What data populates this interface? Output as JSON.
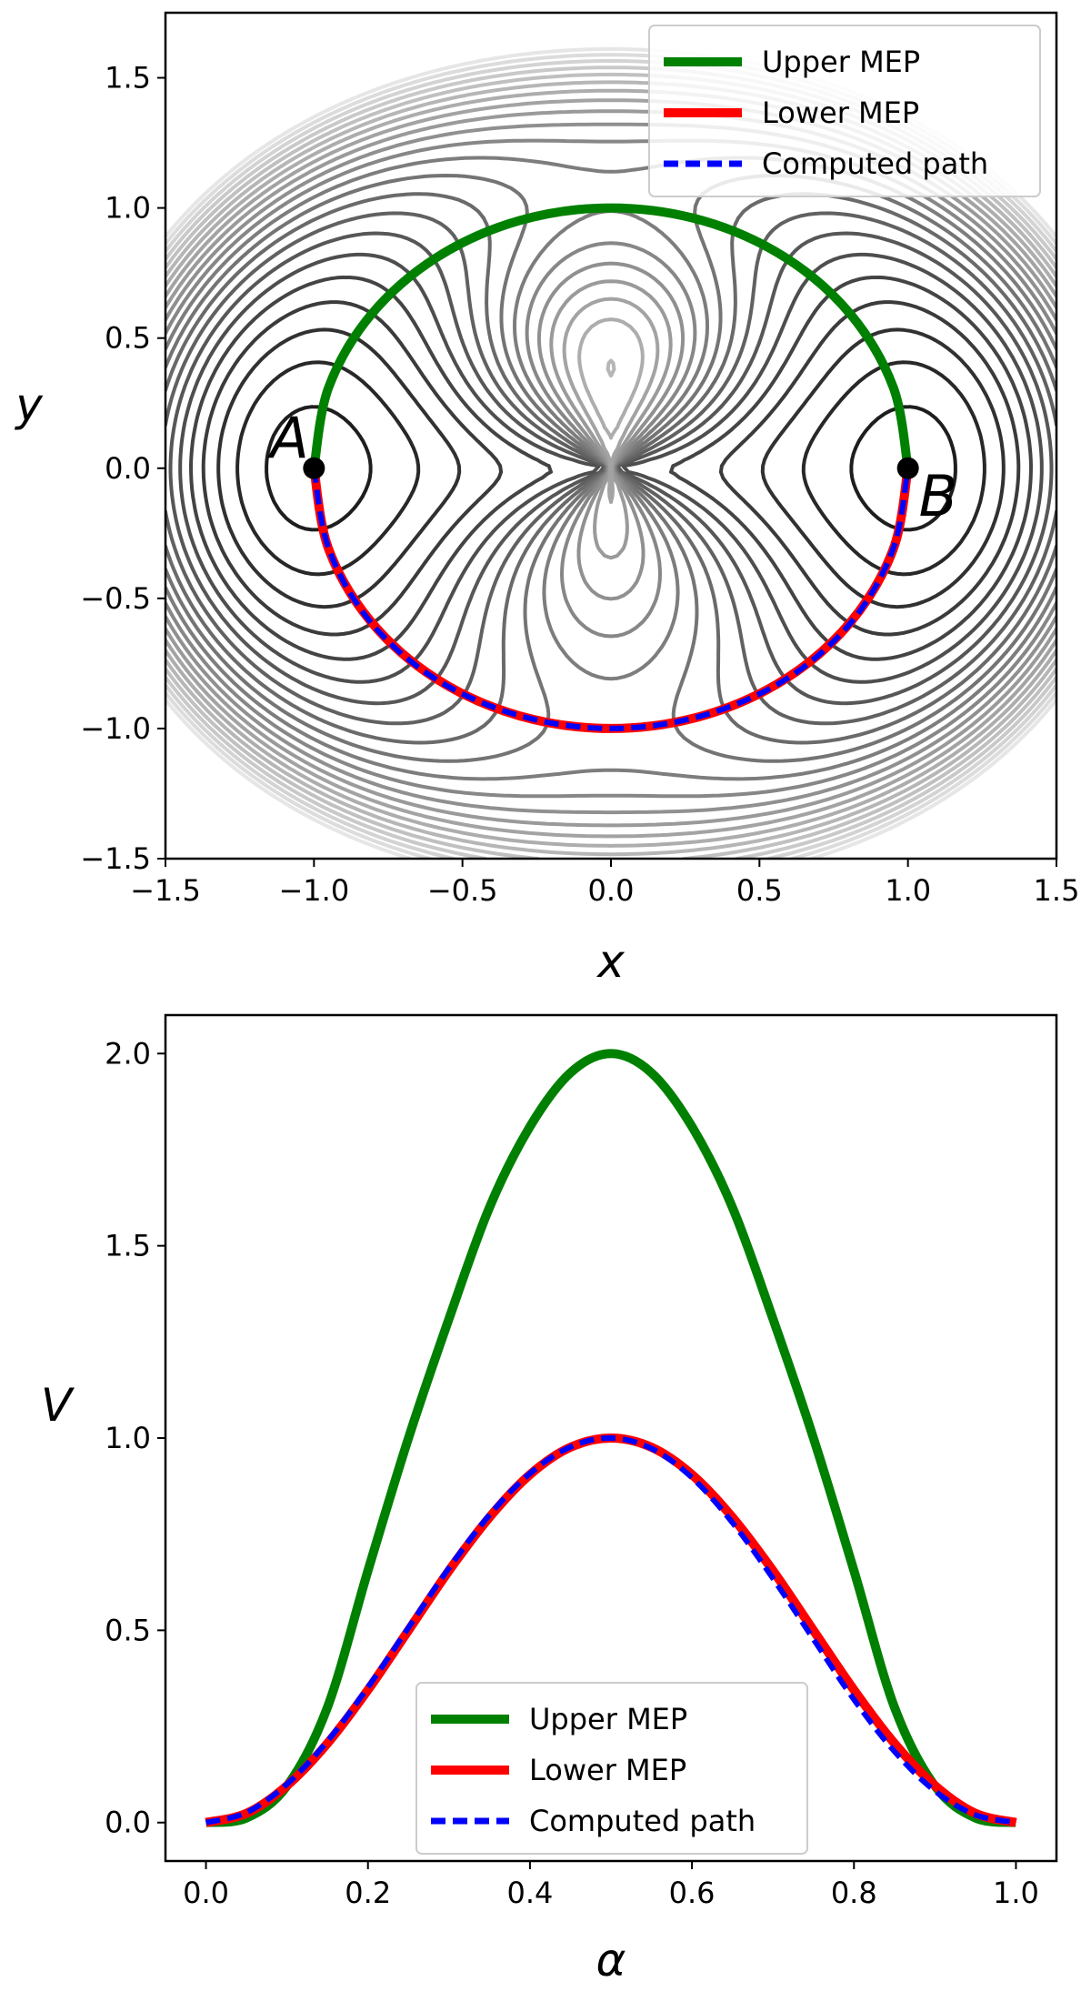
{
  "chart_data": [
    {
      "type": "line",
      "xlabel": "x",
      "ylabel": "y",
      "xlim": [
        -1.5,
        1.5
      ],
      "ylim": [
        -1.5,
        1.75
      ],
      "xticks": [
        -1.5,
        -1.0,
        -0.5,
        0.0,
        0.5,
        1.0,
        1.5
      ],
      "xtick_labels": [
        "−1.5",
        "−1.0",
        "−0.5",
        "0.0",
        "0.5",
        "1.0",
        "1.5"
      ],
      "yticks": [
        -1.5,
        -1.0,
        -0.5,
        0.0,
        0.5,
        1.0,
        1.5
      ],
      "ytick_labels": [
        "−1.5",
        "−1.0",
        "−0.5",
        "0.0",
        "0.5",
        "1.0",
        "1.5"
      ],
      "background": "grayscale contour lines of a potential energy surface with minima near A and B",
      "points": [
        {
          "label": "A",
          "x": -1.0,
          "y": 0.0
        },
        {
          "label": "B",
          "x": 1.0,
          "y": 0.0
        }
      ],
      "series": [
        {
          "name": "Upper MEP",
          "color": "#008000",
          "style": "solid",
          "x": [
            -1.0,
            -0.951,
            -0.809,
            -0.588,
            -0.309,
            0.0,
            0.309,
            0.588,
            0.809,
            0.951,
            1.0
          ],
          "y": [
            0.0,
            0.309,
            0.588,
            0.809,
            0.951,
            1.0,
            0.951,
            0.809,
            0.588,
            0.309,
            0.0
          ]
        },
        {
          "name": "Lower MEP",
          "color": "#ff0000",
          "style": "solid",
          "x": [
            -1.0,
            -0.951,
            -0.809,
            -0.588,
            -0.309,
            0.0,
            0.309,
            0.588,
            0.809,
            0.951,
            1.0
          ],
          "y": [
            0.0,
            -0.309,
            -0.588,
            -0.809,
            -0.951,
            -1.0,
            -0.951,
            -0.809,
            -0.588,
            -0.309,
            0.0
          ]
        },
        {
          "name": "Computed path",
          "color": "#0000ff",
          "style": "dashed",
          "x": [
            -1.0,
            -0.95,
            -0.81,
            -0.59,
            -0.31,
            0.0,
            0.31,
            0.59,
            0.81,
            0.95,
            1.0
          ],
          "y": [
            0.0,
            -0.31,
            -0.59,
            -0.81,
            -0.95,
            -1.0,
            -0.95,
            -0.81,
            -0.59,
            -0.31,
            0.0
          ]
        }
      ],
      "legend": {
        "position": "top-right",
        "entries": [
          "Upper MEP",
          "Lower MEP",
          "Computed path"
        ]
      }
    },
    {
      "type": "line",
      "xlabel": "α",
      "ylabel": "V",
      "xlim": [
        -0.05,
        1.05
      ],
      "ylim": [
        -0.1,
        2.1
      ],
      "xticks": [
        0.0,
        0.2,
        0.4,
        0.6,
        0.8,
        1.0
      ],
      "xtick_labels": [
        "0.0",
        "0.2",
        "0.4",
        "0.6",
        "0.8",
        "1.0"
      ],
      "yticks": [
        0.0,
        0.5,
        1.0,
        1.5,
        2.0
      ],
      "ytick_labels": [
        "0.0",
        "0.5",
        "1.0",
        "1.5",
        "2.0"
      ],
      "series": [
        {
          "name": "Upper MEP",
          "color": "#008000",
          "style": "solid",
          "x": [
            0.0,
            0.05,
            0.1,
            0.15,
            0.2,
            0.25,
            0.3,
            0.35,
            0.4,
            0.45,
            0.5,
            0.55,
            0.6,
            0.65,
            0.7,
            0.75,
            0.8,
            0.85,
            0.9,
            0.95,
            1.0
          ],
          "y": [
            0.0,
            0.012,
            0.095,
            0.3,
            0.655,
            1.0,
            1.31,
            1.6,
            1.81,
            1.95,
            2.0,
            1.95,
            1.81,
            1.6,
            1.31,
            1.0,
            0.655,
            0.3,
            0.095,
            0.012,
            0.0
          ]
        },
        {
          "name": "Lower MEP",
          "color": "#ff0000",
          "style": "solid",
          "x": [
            0.0,
            0.05,
            0.1,
            0.15,
            0.2,
            0.25,
            0.3,
            0.35,
            0.4,
            0.45,
            0.5,
            0.55,
            0.6,
            0.65,
            0.7,
            0.75,
            0.8,
            0.85,
            0.9,
            0.95,
            1.0
          ],
          "y": [
            0.0,
            0.024,
            0.096,
            0.206,
            0.345,
            0.5,
            0.655,
            0.794,
            0.905,
            0.976,
            1.0,
            0.976,
            0.905,
            0.794,
            0.655,
            0.5,
            0.345,
            0.206,
            0.096,
            0.024,
            0.0
          ]
        },
        {
          "name": "Computed path",
          "color": "#0000ff",
          "style": "dashed",
          "x": [
            0.0,
            0.05,
            0.1,
            0.15,
            0.2,
            0.25,
            0.3,
            0.35,
            0.4,
            0.45,
            0.5,
            0.55,
            0.6,
            0.65,
            0.7,
            0.75,
            0.8,
            0.85,
            0.9,
            0.95,
            1.0
          ],
          "y": [
            0.0,
            0.026,
            0.1,
            0.212,
            0.352,
            0.507,
            0.662,
            0.8,
            0.908,
            0.977,
            1.0,
            0.973,
            0.897,
            0.78,
            0.635,
            0.477,
            0.32,
            0.185,
            0.082,
            0.02,
            0.0
          ]
        }
      ],
      "legend": {
        "position": "lower-center",
        "entries": [
          "Upper MEP",
          "Lower MEP",
          "Computed path"
        ]
      }
    }
  ]
}
